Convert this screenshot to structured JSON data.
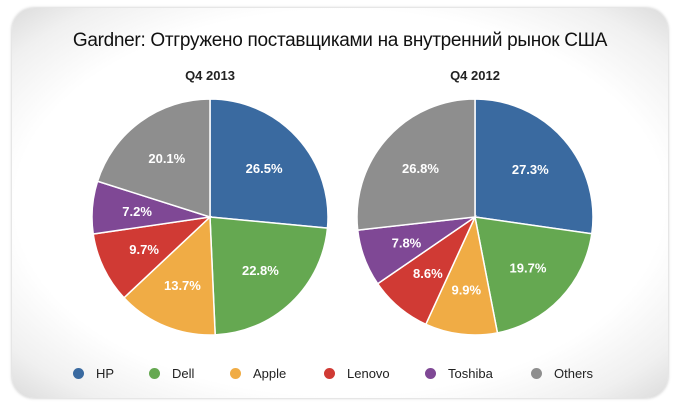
{
  "chart_data": [
    {
      "type": "pie",
      "title": "Q4 2013",
      "categories": [
        "HP",
        "Dell",
        "Apple",
        "Lenovo",
        "Toshiba",
        "Others"
      ],
      "values": [
        26.5,
        22.8,
        13.7,
        9.7,
        7.2,
        20.1
      ],
      "labels": [
        "26.5%",
        "22.8%",
        "13.7%",
        "9.7%",
        "7.2%",
        "20.1%"
      ]
    },
    {
      "type": "pie",
      "title": "Q4 2012",
      "categories": [
        "HP",
        "Dell",
        "Apple",
        "Lenovo",
        "Toshiba",
        "Others"
      ],
      "values": [
        27.3,
        19.7,
        9.9,
        8.6,
        7.8,
        26.8
      ],
      "labels": [
        "27.3%",
        "19.7%",
        "9.9%",
        "8.6%",
        "7.8%",
        "26.8%"
      ]
    }
  ],
  "title": "Gardner: Отгружено поставщиками на внутренний рынок США",
  "legend": [
    {
      "label": "HP",
      "color": "#3a6aa0"
    },
    {
      "label": "Dell",
      "color": "#65a851"
    },
    {
      "label": "Apple",
      "color": "#f0ac45"
    },
    {
      "label": "Lenovo",
      "color": "#d03a34"
    },
    {
      "label": "Toshiba",
      "color": "#7f4895"
    },
    {
      "label": "Others",
      "color": "#8e8e8e"
    }
  ]
}
